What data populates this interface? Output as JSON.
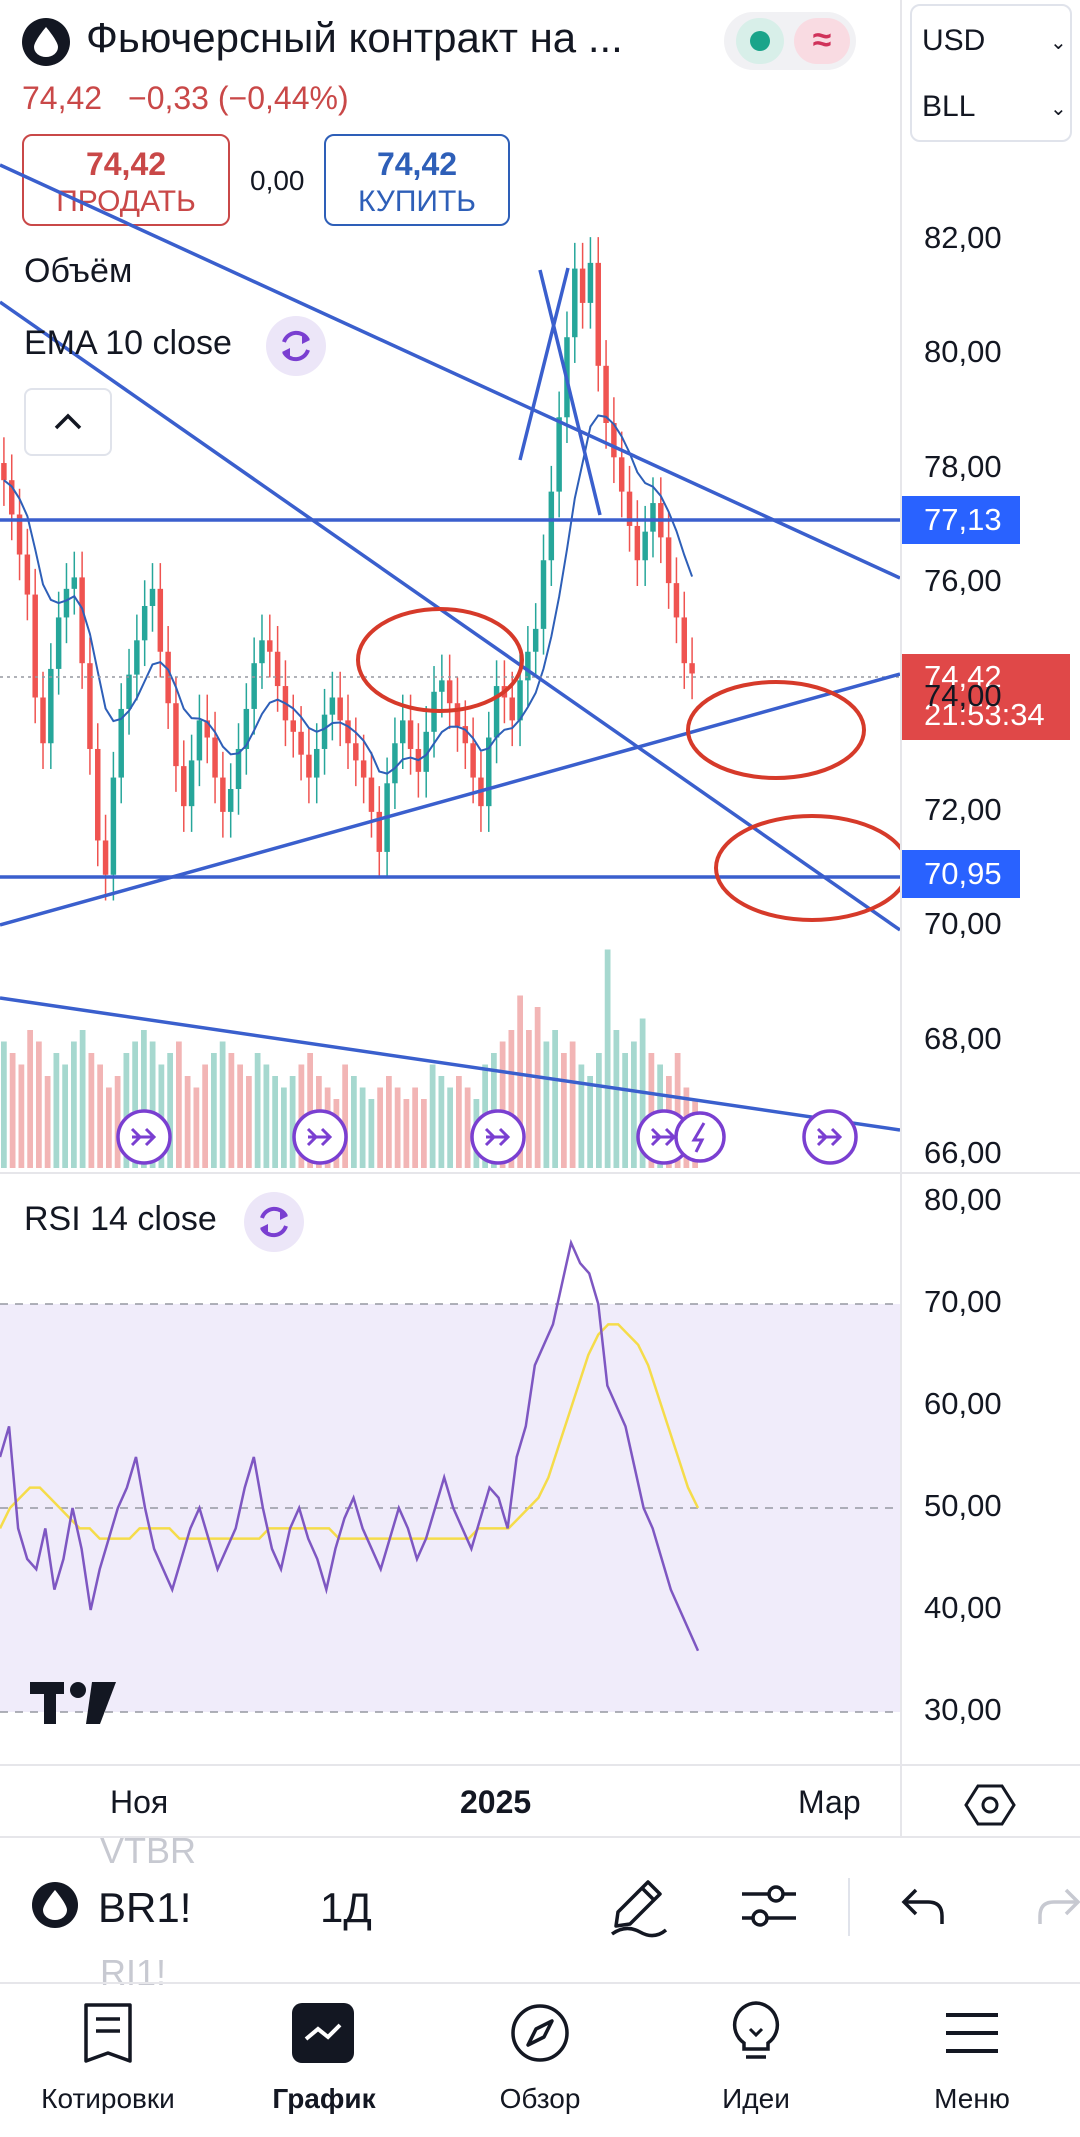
{
  "header": {
    "title": "Фьючерсный контракт на ...",
    "price": "74,42",
    "change": "−0,33 (−0,44%)",
    "currency": "USD",
    "unit": "BLL"
  },
  "trade": {
    "sell_price": "74,42",
    "sell_label": "ПРОДАТЬ",
    "spread": "0,00",
    "buy_price": "74,42",
    "buy_label": "КУПИТЬ"
  },
  "indicators": {
    "volume_label": "Объём",
    "ema_label": "EMA 10 close",
    "rsi_label": "RSI 14 close"
  },
  "chart_data": [
    {
      "type": "candlestick",
      "title": "",
      "y_axis_ticks": [
        "82,00",
        "80,00",
        "78,00",
        "76,00",
        "74,00",
        "72,00",
        "70,00",
        "68,00",
        "66,00"
      ],
      "ylim": [
        65.8,
        83.5
      ],
      "x_axis_ticks": [
        "Ноя",
        "2025",
        "Мар"
      ],
      "last_price_label": "74,42",
      "countdown_label": "21:53:34",
      "horizontal_levels": [
        {
          "label": "77,13",
          "value": 77.13
        },
        {
          "label": "70,95",
          "value": 70.95
        }
      ],
      "close_series_approx": [
        77.8,
        77.2,
        76.5,
        75.8,
        74.0,
        73.2,
        74.5,
        75.4,
        75.9,
        76.1,
        74.6,
        73.1,
        71.5,
        70.9,
        72.6,
        73.8,
        74.4,
        75.0,
        75.6,
        75.9,
        74.8,
        73.9,
        72.8,
        72.1,
        72.9,
        73.6,
        73.3,
        72.6,
        72.0,
        72.4,
        73.1,
        73.8,
        74.6,
        75.0,
        74.8,
        74.2,
        73.6,
        73.4,
        73.0,
        72.6,
        73.1,
        73.7,
        74.0,
        73.6,
        73.2,
        72.9,
        72.6,
        72.0,
        71.3,
        72.5,
        73.2,
        73.6,
        73.1,
        72.7,
        73.4,
        74.1,
        74.3,
        73.9,
        73.5,
        73.2,
        72.6,
        72.1,
        73.3,
        74.2,
        74.0,
        73.6,
        74.3,
        74.8,
        75.2,
        76.4,
        77.6,
        78.9,
        80.3,
        81.5,
        80.9,
        81.6,
        79.8,
        78.8,
        78.2,
        77.6,
        77.0,
        76.4,
        76.9,
        77.4,
        76.8,
        76.0,
        75.4,
        74.6,
        74.42
      ]
    },
    {
      "type": "bar",
      "title": "Объём",
      "note": "volume bars, relative heights",
      "values_relative": [
        0.55,
        0.5,
        0.45,
        0.6,
        0.55,
        0.4,
        0.5,
        0.45,
        0.55,
        0.6,
        0.5,
        0.45,
        0.35,
        0.4,
        0.5,
        0.55,
        0.6,
        0.55,
        0.45,
        0.5,
        0.55,
        0.4,
        0.35,
        0.45,
        0.5,
        0.55,
        0.5,
        0.45,
        0.4,
        0.5,
        0.45,
        0.4,
        0.35,
        0.4,
        0.45,
        0.5,
        0.4,
        0.35,
        0.3,
        0.45,
        0.4,
        0.35,
        0.3,
        0.35,
        0.4,
        0.35,
        0.3,
        0.35,
        0.3,
        0.45,
        0.4,
        0.35,
        0.4,
        0.35,
        0.3,
        0.45,
        0.5,
        0.55,
        0.6,
        0.75,
        0.6,
        0.7,
        0.55,
        0.6,
        0.5,
        0.55,
        0.45,
        0.4,
        0.5,
        0.95,
        0.6,
        0.5,
        0.55,
        0.65,
        0.5,
        0.45,
        0.4,
        0.5,
        0.35,
        0.3
      ]
    },
    {
      "type": "line",
      "title": "RSI 14 close",
      "y_axis_ticks": [
        "80,00",
        "70,00",
        "60,00",
        "50,00",
        "40,00",
        "30,00"
      ],
      "ylim": [
        27,
        81
      ],
      "bands": [
        30,
        50,
        70
      ],
      "series": [
        {
          "name": "",
          "values": [
            55,
            58,
            48,
            45,
            44,
            48,
            42,
            45,
            50,
            46,
            40,
            44,
            47,
            50,
            52,
            55,
            50,
            46,
            44,
            42,
            45,
            48,
            50,
            47,
            44,
            46,
            48,
            52,
            55,
            50,
            46,
            44,
            48,
            50,
            47,
            45,
            42,
            46,
            49,
            51,
            48,
            46,
            44,
            47,
            50,
            48,
            45,
            47,
            50,
            53,
            50,
            48,
            46,
            49,
            52,
            51,
            48,
            55,
            58,
            64,
            66,
            68,
            72,
            76,
            74,
            73,
            70,
            62,
            60,
            58,
            54,
            50,
            48,
            45,
            42,
            40,
            38,
            36
          ]
        },
        {
          "name": "",
          "values": [
            48,
            50,
            51,
            52,
            52,
            51,
            50,
            49,
            48,
            48,
            47,
            47,
            47,
            47,
            48,
            48,
            48,
            48,
            47,
            47,
            47,
            47,
            47,
            47,
            47,
            47,
            47,
            48,
            48,
            48,
            48,
            48,
            48,
            48,
            47,
            47,
            47,
            47,
            47,
            47,
            47,
            47,
            47,
            47,
            47,
            47,
            47,
            47,
            48,
            48,
            48,
            48,
            49,
            50,
            51,
            53,
            56,
            59,
            62,
            65,
            67,
            68,
            68,
            67,
            66,
            64,
            61,
            58,
            55,
            52,
            50
          ]
        }
      ]
    }
  ],
  "toolbar": {
    "symbol": "BR1!",
    "interval": "1Д",
    "ghost_above": "VTBR",
    "ghost_below": "RI1!"
  },
  "nav": {
    "quotes": "Котировки",
    "chart": "График",
    "overview": "Обзор",
    "ideas": "Идеи",
    "menu": "Меню"
  },
  "logo_text": "TV"
}
